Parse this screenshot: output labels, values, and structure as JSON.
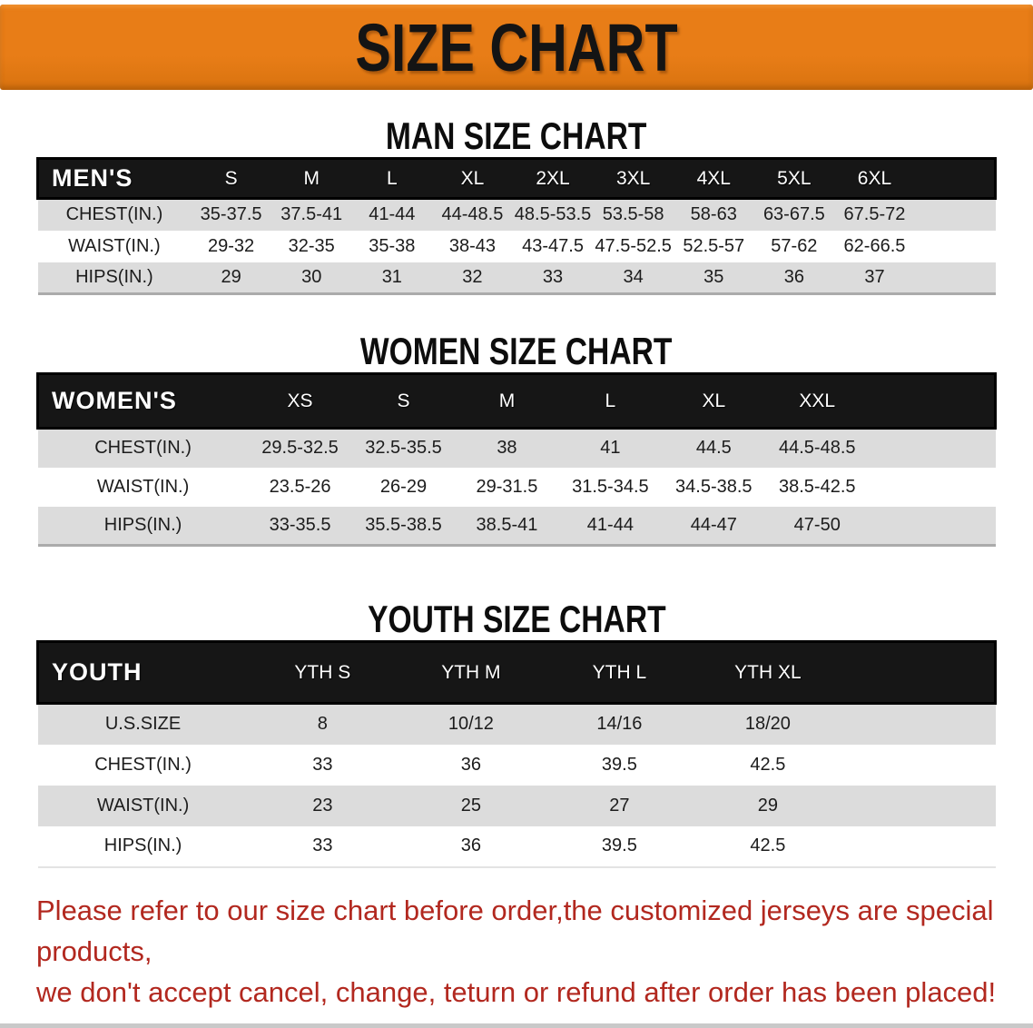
{
  "banner": {
    "title": "SIZE CHART"
  },
  "colors": {
    "banner_bg": "#e87d17",
    "banner_text": "#141414",
    "table_header_bg": "#161616",
    "table_header_text": "#ffffff",
    "row_stripe": "#dcdcdc",
    "row_text": "#1c1c1c",
    "footnote_text": "#b2281f"
  },
  "sections": [
    {
      "heading": "MAN SIZE CHART",
      "table": {
        "header_label": "MEN'S",
        "columns": [
          "S",
          "M",
          "L",
          "XL",
          "2XL",
          "3XL",
          "4XL",
          "5XL",
          "6XL"
        ],
        "rows": [
          {
            "label": "CHEST(IN.)",
            "values": [
              "35-37.5",
              "37.5-41",
              "41-44",
              "44-48.5",
              "48.5-53.5",
              "53.5-58",
              "58-63",
              "63-67.5",
              "67.5-72"
            ]
          },
          {
            "label": "WAIST(IN.)",
            "values": [
              "29-32",
              "32-35",
              "35-38",
              "38-43",
              "43-47.5",
              "47.5-52.5",
              "52.5-57",
              "57-62",
              "62-66.5"
            ]
          },
          {
            "label": "HIPS(IN.)",
            "values": [
              "29",
              "30",
              "31",
              "32",
              "33",
              "34",
              "35",
              "36",
              "37"
            ]
          }
        ]
      }
    },
    {
      "heading": "WOMEN SIZE CHART",
      "table": {
        "header_label": "WOMEN'S",
        "columns": [
          "XS",
          "S",
          "M",
          "L",
          "XL",
          "XXL"
        ],
        "rows": [
          {
            "label": "CHEST(IN.)",
            "values": [
              "29.5-32.5",
              "32.5-35.5",
              "38",
              "41",
              "44.5",
              "44.5-48.5"
            ]
          },
          {
            "label": "WAIST(IN.)",
            "values": [
              "23.5-26",
              "26-29",
              "29-31.5",
              "31.5-34.5",
              "34.5-38.5",
              "38.5-42.5"
            ]
          },
          {
            "label": "HIPS(IN.)",
            "values": [
              "33-35.5",
              "35.5-38.5",
              "38.5-41",
              "41-44",
              "44-47",
              "47-50"
            ]
          }
        ]
      }
    },
    {
      "heading": "YOUTH SIZE CHART",
      "table": {
        "header_label": "YOUTH",
        "columns": [
          "YTH S",
          "YTH M",
          "YTH L",
          "YTH XL"
        ],
        "rows": [
          {
            "label": "U.S.SIZE",
            "values": [
              "8",
              "10/12",
              "14/16",
              "18/20"
            ]
          },
          {
            "label": "CHEST(IN.)",
            "values": [
              "33",
              "36",
              "39.5",
              "42.5"
            ]
          },
          {
            "label": "WAIST(IN.)",
            "values": [
              "23",
              "25",
              "27",
              "29"
            ]
          },
          {
            "label": "HIPS(IN.)",
            "values": [
              "33",
              "36",
              "39.5",
              "42.5"
            ]
          }
        ]
      }
    }
  ],
  "footnote": {
    "line1": "Please refer to our size chart before order,the customized jerseys are special products,",
    "line2": "we don't accept cancel, change, teturn or refund after order has been placed!"
  }
}
